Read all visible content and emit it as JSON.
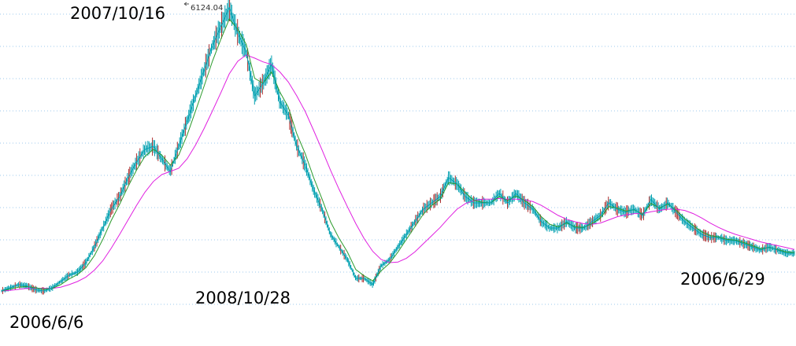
{
  "chart_data": {
    "type": "line",
    "title": "",
    "xlabel": "",
    "ylabel": "",
    "grid": true,
    "annotations": {
      "start": "2006/6/6",
      "peak": "2007/10/16",
      "peak_value": "6124.04",
      "trough": "2008/10/28",
      "end": "2006/6/29"
    },
    "colors": {
      "background": "#ffffff",
      "grid": "#9ec9ee",
      "candles": "#00a0b0",
      "candles_down": "#b03030",
      "ma_short": "#2a9a2a",
      "ma_long": "#e020e0"
    },
    "series": [
      {
        "values": [
          1600,
          1650,
          1700,
          1680,
          1620,
          1600,
          1650,
          1750,
          1850,
          1900,
          2050,
          2300,
          2600,
          2900,
          3100,
          3400,
          3650,
          3850,
          3900,
          3700,
          3500,
          3900,
          4300,
          4700,
          5100,
          5500,
          5800,
          6100,
          5700,
          5400,
          4700,
          4900,
          5200,
          4600,
          4400,
          3900,
          3600,
          3200,
          2900,
          2500,
          2300,
          2100,
          1800,
          1800,
          1700,
          2000,
          2100,
          2300,
          2500,
          2700,
          2900,
          3000,
          3100,
          3400,
          3300,
          3100,
          3000,
          3000,
          3000,
          3150,
          3000,
          3150,
          3000,
          2900,
          2700,
          2600,
          2600,
          2700,
          2600,
          2600,
          2700,
          2800,
          3000,
          2900,
          2850,
          2900,
          2800,
          3050,
          2900,
          3000,
          2850,
          2700,
          2600,
          2500,
          2450,
          2450,
          2400,
          2400,
          2350,
          2300,
          2250,
          2300,
          2250,
          2200,
          2200
        ]
      },
      {
        "values": [
          1600,
          1630,
          1660,
          1670,
          1650,
          1630,
          1640,
          1700,
          1790,
          1860,
          1970,
          2160,
          2420,
          2720,
          2980,
          3260,
          3520,
          3740,
          3850,
          3760,
          3600,
          3760,
          4080,
          4460,
          4850,
          5250,
          5600,
          5920,
          5760,
          5520,
          4980,
          4900,
          5080,
          4760,
          4520,
          4100,
          3780,
          3400,
          3060,
          2700,
          2440,
          2220,
          1940,
          1840,
          1760,
          1920,
          2040,
          2220,
          2420,
          2620,
          2820,
          2960,
          3060,
          3320,
          3300,
          3160,
          3040,
          3010,
          3000,
          3100,
          3040,
          3110,
          3040,
          2940,
          2780,
          2660,
          2620,
          2680,
          2620,
          2610,
          2670,
          2760,
          2940,
          2920,
          2870,
          2890,
          2820,
          2990,
          2920,
          2980,
          2880,
          2750,
          2640,
          2540,
          2480,
          2460,
          2420,
          2410,
          2370,
          2320,
          2270,
          2290,
          2260,
          2220,
          2210
        ]
      },
      {
        "values": [
          1600,
          1610,
          1625,
          1640,
          1645,
          1640,
          1642,
          1660,
          1700,
          1750,
          1820,
          1930,
          2080,
          2280,
          2500,
          2730,
          2960,
          3170,
          3340,
          3450,
          3500,
          3550,
          3700,
          3920,
          4180,
          4460,
          4750,
          5050,
          5250,
          5350,
          5300,
          5240,
          5200,
          5080,
          4920,
          4700,
          4450,
          4150,
          3840,
          3520,
          3220,
          2940,
          2670,
          2430,
          2230,
          2100,
          2050,
          2060,
          2120,
          2220,
          2350,
          2480,
          2610,
          2760,
          2900,
          2990,
          3040,
          3060,
          3060,
          3070,
          3060,
          3060,
          3050,
          3020,
          2960,
          2880,
          2800,
          2740,
          2700,
          2670,
          2660,
          2680,
          2730,
          2780,
          2810,
          2830,
          2830,
          2860,
          2880,
          2900,
          2900,
          2880,
          2830,
          2760,
          2680,
          2610,
          2550,
          2500,
          2460,
          2420,
          2380,
          2350,
          2320,
          2290,
          2260
        ]
      }
    ]
  }
}
